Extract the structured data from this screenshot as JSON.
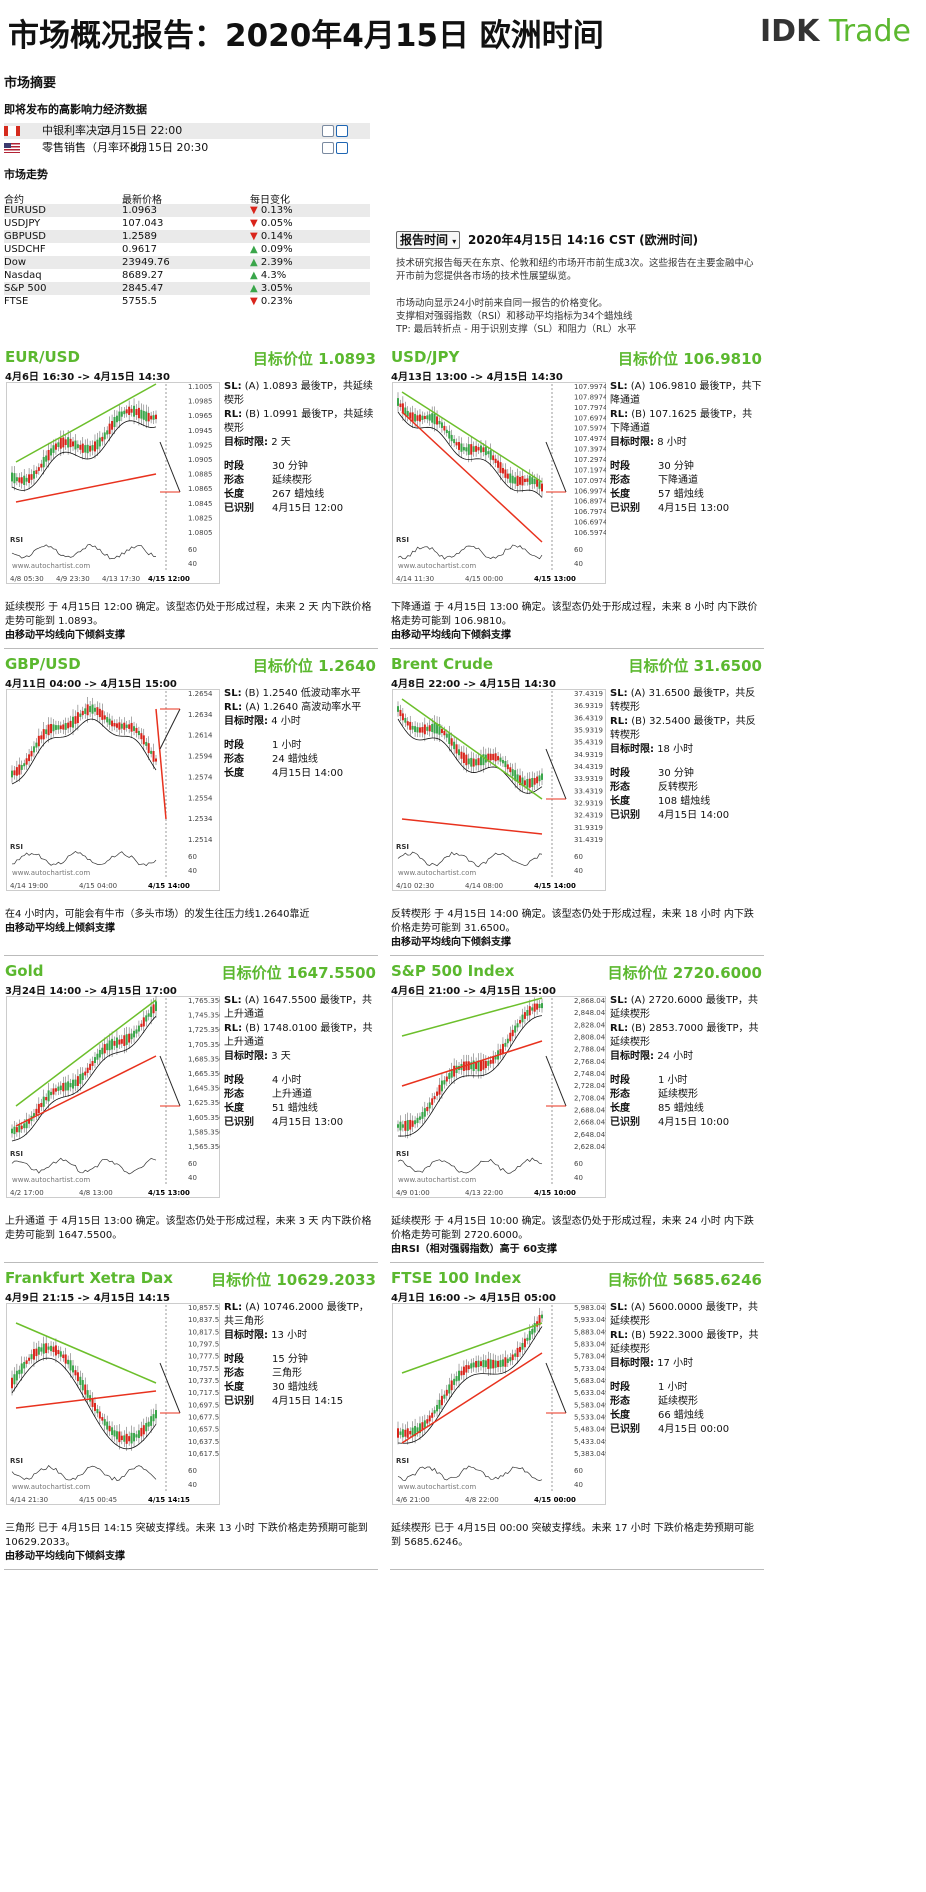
{
  "header": {
    "title": "市场概况报告：2020年4月15日 欧洲时间",
    "logo_part1": "DK",
    "logo_part2": "Trade",
    "logo_mark": "I"
  },
  "summary": {
    "heading": "市场摘要",
    "events_heading": "即将发布的高影响力经济数据",
    "events": [
      {
        "flag": "canada-flag-icon",
        "name": "中银利率决定",
        "time": "4月15日 22:00"
      },
      {
        "flag": "us-flag-icon",
        "name": "零售销售（月率环比）",
        "time": "4月15日 20:30"
      }
    ],
    "trend_heading": "市场走势",
    "columns": [
      "合约",
      "最新价格",
      "每日变化"
    ],
    "instruments": [
      {
        "name": "EURUSD",
        "price": "1.0963",
        "change": "0.13%",
        "dir": "down"
      },
      {
        "name": "USDJPY",
        "price": "107.043",
        "change": "0.05%",
        "dir": "down"
      },
      {
        "name": "GBPUSD",
        "price": "1.2589",
        "change": "0.14%",
        "dir": "down"
      },
      {
        "name": "USDCHF",
        "price": "0.9617",
        "change": "0.09%",
        "dir": "up"
      },
      {
        "name": "Dow",
        "price": "23949.76",
        "change": "2.39%",
        "dir": "up"
      },
      {
        "name": "Nasdaq",
        "price": "8689.27",
        "change": "4.3%",
        "dir": "up"
      },
      {
        "name": "S&P 500",
        "price": "2845.47",
        "change": "3.05%",
        "dir": "up"
      },
      {
        "name": "FTSE",
        "price": "5755.5",
        "change": "0.23%",
        "dir": "down"
      }
    ]
  },
  "report": {
    "button": "报告时间",
    "time": "2020年4月15日 14:16 CST (欧洲时间)",
    "intro": "技术研究报告每天在东京、伦敦和纽约市场开市前生成3次。这些报告在主要金融中心开市前为您提供各市场的技术性展望纵览。",
    "note1": "市场动向显示24小时前来自同一报告的价格变化。",
    "note2": "支撑相对强弱指数（RSI）和移动平均指标为34个蜡烛线",
    "note3": "TP: 最后转折点 - 用于识别支撑（SL）和阻力（RL）水平"
  },
  "labels": {
    "interval": "时段",
    "pattern": "形态",
    "length": "长度",
    "identified": "已识别",
    "target_time": "目标时限:",
    "rsi": "RSI",
    "watermark": "www.autochartist.com"
  },
  "panels": [
    {
      "name": "EUR/USD",
      "target": "目标价位 1.0893",
      "range": "4月6日 16:30 -> 4月15日 14:30",
      "sl": "(A) 1.0893 最後TP，共延续楔形",
      "rl": "(B) 1.0991 最後TP，共延续楔形",
      "target_time": "2 天",
      "interval": "30 分钟",
      "pattern": "延续楔形",
      "length": "267 蜡烛线",
      "identified": "4月15日 12:00",
      "desc": "延续楔形 于 4月15日 12:00 确定。该型态仍处于形成过程，未来 2 天 内下跌价格走势可能到 1.0893。",
      "note": "由移动平均线向下倾斜支撑",
      "y_ticks": [
        "1.1005",
        "1.0985",
        "1.0965",
        "1.0945",
        "1.0925",
        "1.0905",
        "1.0885",
        "1.0865",
        "1.0845",
        "1.0825",
        "1.0805"
      ],
      "x_ticks": [
        "4/8 05:30",
        "4/9 23:30",
        "4/13 17:30",
        "4/15 12:00"
      ],
      "rsi_ticks": [
        "60",
        "40"
      ]
    },
    {
      "name": "USD/JPY",
      "target": "目标价位 106.9810",
      "range": "4月13日 13:00 -> 4月15日 14:30",
      "sl": "(A) 106.9810 最後TP，共下降通道",
      "rl": "(B) 107.1625 最後TP，共下降通道",
      "target_time": "8 小时",
      "interval": "30 分钟",
      "pattern": "下降通道",
      "length": "57 蜡烛线",
      "identified": "4月15日 13:00",
      "desc": "下降通道 于 4月15日 13:00 确定。该型态仍处于形成过程，未来 8 小时 内下跌价格走势可能到 106.9810。",
      "note": "由移动平均线向下倾斜支撑",
      "y_ticks": [
        "107.9974",
        "107.8974",
        "107.7974",
        "107.6974",
        "107.5974",
        "107.4974",
        "107.3974",
        "107.2974",
        "107.1974",
        "107.0974",
        "106.9974",
        "106.8974",
        "106.7974",
        "106.6974",
        "106.5974"
      ],
      "x_ticks": [
        "4/14 11:30",
        "4/15 00:00",
        "4/15 13:00"
      ],
      "rsi_ticks": [
        "60",
        "40"
      ]
    },
    {
      "name": "GBP/USD",
      "target": "目标价位 1.2640",
      "range": "4月11日 04:00 -> 4月15日 15:00",
      "sl": "(B) 1.2540 低波动率水平",
      "rl": "(A) 1.2640 高波动率水平",
      "target_time": "4 小时",
      "interval": "1 小时",
      "pattern": "24 蜡烛线",
      "length": "4月15日 14:00",
      "identified": "",
      "desc": "在4 小时内，可能会有牛市（多头市场）的发生往压力线1.2640靠近",
      "note": "由移动平均线上倾斜支撑",
      "y_ticks": [
        "1.2654",
        "1.2634",
        "1.2614",
        "1.2594",
        "1.2574",
        "1.2554",
        "1.2534",
        "1.2514"
      ],
      "x_ticks": [
        "4/14 19:00",
        "4/15 04:00",
        "4/15 14:00"
      ],
      "rsi_ticks": [
        "60",
        "40"
      ]
    },
    {
      "name": "Brent Crude",
      "target": "目标价位 31.6500",
      "range": "4月8日 22:00 -> 4月15日 14:30",
      "sl": "(A) 31.6500 最後TP，共反转楔形",
      "rl": "(B) 32.5400 最後TP，共反转楔形",
      "target_time": "18 小时",
      "interval": "30 分钟",
      "pattern": "反转楔形",
      "length": "108 蜡烛线",
      "identified": "4月15日 14:00",
      "desc": "反转楔形 于 4月15日 14:00 确定。该型态仍处于形成过程，未来 18 小时 内下跌价格走势可能到 31.6500。",
      "note": "由移动平均线向下倾斜支撑",
      "y_ticks": [
        "37.4319",
        "36.9319",
        "36.4319",
        "35.9319",
        "35.4319",
        "34.9319",
        "34.4319",
        "33.9319",
        "33.4319",
        "32.9319",
        "32.4319",
        "31.9319",
        "31.4319"
      ],
      "x_ticks": [
        "4/10 02:30",
        "4/14 08:00",
        "4/15 14:00"
      ],
      "rsi_ticks": [
        "60",
        "40"
      ]
    },
    {
      "name": "Gold",
      "target": "目标价位 1647.5500",
      "range": "3月24日 14:00 -> 4月15日 17:00",
      "sl": "(A) 1647.5500 最後TP，共上升通道",
      "rl": "(B) 1748.0100 最後TP，共上升通道",
      "target_time": "3 天",
      "interval": "4 小时",
      "pattern": "上升通道",
      "length": "51 蜡烛线",
      "identified": "4月15日 13:00",
      "desc": "上升通道 于 4月15日 13:00 确定。该型态仍处于形成过程，未来 3 天 内下跌价格走势可能到 1647.5500。",
      "note": "",
      "y_ticks": [
        "1,765.3567",
        "1,745.3567",
        "1,725.3567",
        "1,705.3567",
        "1,685.3567",
        "1,665.3567",
        "1,645.3567",
        "1,625.3567",
        "1,605.3567",
        "1,585.3567",
        "1,565.3567"
      ],
      "x_ticks": [
        "4/2 17:00",
        "4/8 13:00",
        "4/15 13:00"
      ],
      "rsi_ticks": [
        "60",
        "40"
      ]
    },
    {
      "name": "S&P 500 Index",
      "target": "目标价位 2720.6000",
      "range": "4月6日 21:00 -> 4月15日 15:00",
      "sl": "(A) 2720.6000 最後TP，共延续楔形",
      "rl": "(B) 2853.7000 最後TP，共延续楔形",
      "target_time": "24 小时",
      "interval": "1 小时",
      "pattern": "延续楔形",
      "length": "85 蜡烛线",
      "identified": "4月15日 10:00",
      "desc": "延续楔形 于 4月15日 10:00 确定。该型态仍处于形成过程，未来 24 小时 内下跌价格走势可能到 2720.6000。",
      "note": "由RSI（相对强弱指数）高于 60支撑",
      "y_ticks": [
        "2,868.0477",
        "2,848.0477",
        "2,828.0477",
        "2,808.0477",
        "2,788.0477",
        "2,768.0477",
        "2,748.0477",
        "2,728.0477",
        "2,708.0477",
        "2,688.0477",
        "2,668.0477",
        "2,648.0477",
        "2,628.0477"
      ],
      "x_ticks": [
        "4/9 01:00",
        "4/13 22:00",
        "4/15 10:00"
      ],
      "rsi_ticks": [
        "60",
        "40"
      ]
    },
    {
      "name": "Frankfurt Xetra Dax",
      "target": "目标价位 10629.2033",
      "range": "4月9日 21:15 -> 4月15日 14:15",
      "sl": "",
      "rl": "(A) 10746.2000 最後TP，共三角形",
      "target_time": "13 小时",
      "interval": "15 分钟",
      "pattern": "三角形",
      "length": "30 蜡烛线",
      "identified": "4月15日 14:15",
      "desc": "三角形 已于 4月15日 14:15 突破支撑线。未来 13 小时 下跌价格走势预期可能到 10629.2033。",
      "note": "由移动平均线向下倾斜支撑",
      "y_ticks": [
        "10,857.5176",
        "10,837.5176",
        "10,817.5176",
        "10,797.5176",
        "10,777.5176",
        "10,757.5176",
        "10,737.5176",
        "10,717.5176",
        "10,697.5176",
        "10,677.5176",
        "10,657.5176",
        "10,637.5176",
        "10,617.5176"
      ],
      "x_ticks": [
        "4/14 21:30",
        "4/15 00:45",
        "4/15 14:15"
      ],
      "rsi_ticks": [
        "60",
        "40"
      ]
    },
    {
      "name": "FTSE 100 Index",
      "target": "目标价位 5685.6246",
      "range": "4月1日 16:00 -> 4月15日 05:00",
      "sl": "(A) 5600.0000 最後TP，共延续楔形",
      "rl": "(B) 5922.3000 最後TP，共延续楔形",
      "target_time": "17 小时",
      "interval": "1 小时",
      "pattern": "延续楔形",
      "length": "66 蜡烛线",
      "identified": "4月15日 00:00",
      "desc": "延续楔形 已于 4月15日 00:00 突破支撑线。未来 17 小时 下跌价格走势预期可能到 5685.6246。",
      "note": "",
      "y_ticks": [
        "5,983.0494",
        "5,933.0494",
        "5,883.0494",
        "5,833.0494",
        "5,783.0494",
        "5,733.0494",
        "5,683.0494",
        "5,633.0494",
        "5,583.0494",
        "5,533.0494",
        "5,483.0494",
        "5,433.0494",
        "5,383.0494"
      ],
      "x_ticks": [
        "4/6 21:00",
        "4/8 22:00",
        "4/15 00:00"
      ],
      "rsi_ticks": [
        "60",
        "40"
      ]
    }
  ]
}
